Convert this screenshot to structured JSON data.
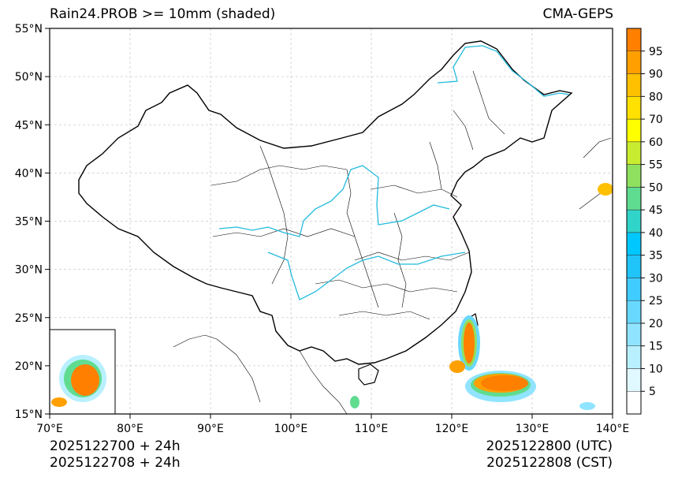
{
  "header": {
    "title_left": "Rain24.PROB >= 10mm (shaded)",
    "title_right": "CMA-GEPS"
  },
  "axes": {
    "lat_labels": [
      "55°N",
      "50°N",
      "45°N",
      "40°N",
      "35°N",
      "30°N",
      "25°N",
      "20°N",
      "15°N"
    ],
    "lat_values": [
      55,
      50,
      45,
      40,
      35,
      30,
      25,
      20,
      15
    ],
    "lon_labels": [
      "70°E",
      "80°E",
      "90°E",
      "100°E",
      "110°E",
      "120°E",
      "130°E",
      "140°E"
    ],
    "lon_values": [
      70,
      80,
      90,
      100,
      110,
      120,
      130,
      140
    ],
    "lon_range": [
      70,
      140
    ],
    "lat_range": [
      15,
      55
    ]
  },
  "colorbar": {
    "labels": [
      "5",
      "10",
      "15",
      "20",
      "25",
      "30",
      "35",
      "40",
      "45",
      "50",
      "55",
      "60",
      "70",
      "80",
      "90",
      "95"
    ],
    "colors": [
      "#ffffff",
      "#e0f8ff",
      "#b8f0ff",
      "#90e4ff",
      "#68d8ff",
      "#40ccff",
      "#20c4f8",
      "#00c8ff",
      "#30d4c8",
      "#60dc90",
      "#90e060",
      "#c8ec30",
      "#ffff00",
      "#ffe000",
      "#ffc000",
      "#ffa000",
      "#ff8000"
    ]
  },
  "footer": {
    "init_utc": "2025122700 + 24h",
    "init_cst": "2025122708 + 24h",
    "valid_utc": "2025122800 (UTC)",
    "valid_cst": "2025122808 (CST)"
  }
}
